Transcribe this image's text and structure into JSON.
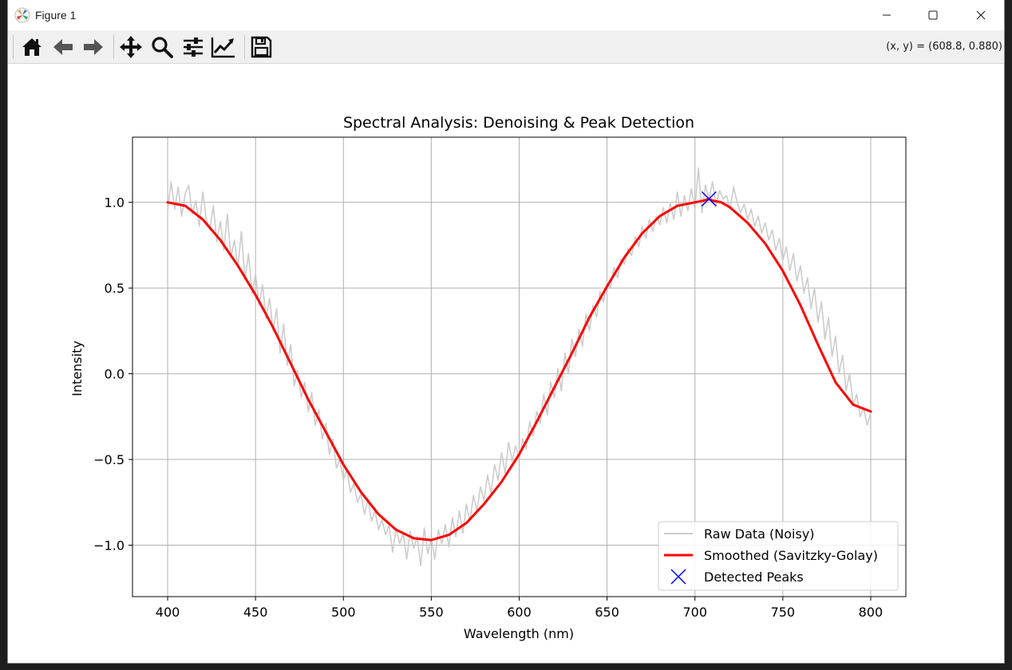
{
  "window": {
    "title": "Figure 1",
    "minimize_icon": "minimize-icon",
    "maximize_icon": "maximize-icon",
    "close_icon": "close-icon"
  },
  "toolbar": {
    "coord_readout": "(x, y) = (608.8, 0.880)",
    "tools": [
      "home-icon",
      "back-arrow-icon",
      "forward-arrow-icon",
      "pan-move-icon",
      "zoom-magnifier-icon",
      "configure-subplots-icon",
      "edit-axis-icon",
      "save-floppy-icon"
    ]
  },
  "chart_data": {
    "type": "line",
    "title": "Spectral Analysis: Denoising & Peak Detection",
    "xlabel": "Wavelength (nm)",
    "ylabel": "Intensity",
    "xlim": [
      380,
      820
    ],
    "ylim": [
      -1.3,
      1.38
    ],
    "xticks": [
      400,
      450,
      500,
      550,
      600,
      650,
      700,
      750,
      800
    ],
    "xtick_labels": [
      "400",
      "450",
      "500",
      "550",
      "600",
      "650",
      "700",
      "750",
      "800"
    ],
    "yticks": [
      -1.0,
      -0.5,
      0.0,
      0.5,
      1.0
    ],
    "ytick_labels": [
      "−1.0",
      "−0.5",
      "0.0",
      "0.5",
      "1.0"
    ],
    "grid": true,
    "legend": "lower-right",
    "colors": {
      "raw": "#cccccc",
      "smoothed": "#ff0000",
      "peaks": "#0000ff",
      "grid": "#b0b0b0"
    },
    "series": [
      {
        "name": "Raw Data (Noisy)",
        "x": [
          400,
          402,
          404,
          406,
          408,
          410,
          412,
          414,
          416,
          418,
          420,
          422,
          424,
          426,
          428,
          430,
          432,
          434,
          436,
          438,
          440,
          442,
          444,
          446,
          448,
          450,
          452,
          454,
          456,
          458,
          460,
          462,
          464,
          466,
          468,
          470,
          472,
          474,
          476,
          478,
          480,
          482,
          484,
          486,
          488,
          490,
          492,
          494,
          496,
          498,
          500,
          502,
          504,
          506,
          508,
          510,
          512,
          514,
          516,
          518,
          520,
          522,
          524,
          526,
          528,
          530,
          532,
          534,
          536,
          538,
          540,
          542,
          544,
          546,
          548,
          550,
          552,
          554,
          556,
          558,
          560,
          562,
          564,
          566,
          568,
          570,
          572,
          574,
          576,
          578,
          580,
          582,
          584,
          586,
          588,
          590,
          592,
          594,
          596,
          598,
          600,
          602,
          604,
          606,
          608,
          610,
          612,
          614,
          616,
          618,
          620,
          622,
          624,
          626,
          628,
          630,
          632,
          634,
          636,
          638,
          640,
          642,
          644,
          646,
          648,
          650,
          652,
          654,
          656,
          658,
          660,
          662,
          664,
          666,
          668,
          670,
          672,
          674,
          676,
          678,
          680,
          682,
          684,
          686,
          688,
          690,
          692,
          694,
          696,
          698,
          700,
          702,
          704,
          706,
          708,
          710,
          712,
          714,
          716,
          718,
          720,
          722,
          724,
          726,
          728,
          730,
          732,
          734,
          736,
          738,
          740,
          742,
          744,
          746,
          748,
          750,
          752,
          754,
          756,
          758,
          760,
          762,
          764,
          766,
          768,
          770,
          772,
          774,
          776,
          778,
          780,
          782,
          784,
          786,
          788,
          790,
          792,
          794,
          796,
          798,
          800
        ],
        "y": [
          0.95,
          1.12,
          0.96,
          1.09,
          0.92,
          1.05,
          1.1,
          0.93,
          1.01,
          0.86,
          1.06,
          0.9,
          0.84,
          0.98,
          0.77,
          0.89,
          0.72,
          0.93,
          0.68,
          0.78,
          0.62,
          0.83,
          0.55,
          0.7,
          0.47,
          0.58,
          0.4,
          0.52,
          0.32,
          0.44,
          0.25,
          0.38,
          0.12,
          0.29,
          0.05,
          0.17,
          -0.07,
          0.02,
          -0.14,
          -0.05,
          -0.22,
          -0.11,
          -0.3,
          -0.21,
          -0.38,
          -0.29,
          -0.47,
          -0.38,
          -0.55,
          -0.5,
          -0.62,
          -0.56,
          -0.69,
          -0.64,
          -0.75,
          -0.7,
          -0.82,
          -0.73,
          -0.86,
          -0.8,
          -0.91,
          -0.85,
          -0.94,
          -0.88,
          -1.04,
          -0.9,
          -0.99,
          -0.93,
          -1.08,
          -0.92,
          -1.02,
          -0.95,
          -1.12,
          -0.9,
          -1.05,
          -0.96,
          -1.08,
          -0.91,
          -0.99,
          -0.88,
          -1.01,
          -0.84,
          -0.95,
          -0.8,
          -0.93,
          -0.76,
          -0.86,
          -0.71,
          -0.8,
          -0.66,
          -0.74,
          -0.59,
          -0.7,
          -0.53,
          -0.62,
          -0.46,
          -0.58,
          -0.4,
          -0.51,
          -0.42,
          -0.5,
          -0.38,
          -0.44,
          -0.28,
          -0.36,
          -0.22,
          -0.29,
          -0.12,
          -0.24,
          -0.05,
          -0.14,
          0.03,
          -0.1,
          0.12,
          0.0,
          0.2,
          0.1,
          0.26,
          0.16,
          0.35,
          0.25,
          0.4,
          0.33,
          0.48,
          0.42,
          0.53,
          0.5,
          0.62,
          0.56,
          0.67,
          0.64,
          0.73,
          0.69,
          0.8,
          0.74,
          0.86,
          0.79,
          0.9,
          0.83,
          0.92,
          0.87,
          0.97,
          0.88,
          1.0,
          0.9,
          1.06,
          0.92,
          1.04,
          0.95,
          1.08,
          0.96,
          1.2,
          0.94,
          1.1,
          1.02,
          1.12,
          0.98,
          1.07,
          1.02,
          1.04,
          0.96,
          1.09,
          1.0,
          0.94,
          0.99,
          0.9,
          0.96,
          0.86,
          0.92,
          0.82,
          0.88,
          0.78,
          0.84,
          0.72,
          0.79,
          0.66,
          0.74,
          0.6,
          0.7,
          0.54,
          0.63,
          0.47,
          0.56,
          0.38,
          0.5,
          0.3,
          0.42,
          0.2,
          0.33,
          0.1,
          0.22,
          0.0,
          0.11,
          -0.1,
          0.0,
          -0.18,
          -0.12,
          -0.25,
          -0.2,
          -0.3,
          -0.23
        ],
        "color": "#cccccc"
      },
      {
        "name": "Smoothed (Savitzky-Golay)",
        "x": [
          400,
          410,
          420,
          430,
          440,
          450,
          460,
          470,
          480,
          490,
          500,
          510,
          520,
          530,
          540,
          550,
          560,
          570,
          580,
          590,
          600,
          610,
          620,
          630,
          640,
          650,
          660,
          670,
          680,
          690,
          700,
          705,
          708,
          710,
          715,
          720,
          730,
          740,
          750,
          760,
          770,
          780,
          790,
          800
        ],
        "y": [
          1.0,
          0.98,
          0.9,
          0.78,
          0.63,
          0.46,
          0.27,
          0.06,
          -0.15,
          -0.34,
          -0.53,
          -0.69,
          -0.82,
          -0.91,
          -0.96,
          -0.97,
          -0.94,
          -0.87,
          -0.76,
          -0.63,
          -0.47,
          -0.28,
          -0.08,
          0.12,
          0.33,
          0.51,
          0.68,
          0.82,
          0.92,
          0.98,
          1.0,
          1.01,
          1.02,
          1.01,
          1.0,
          0.97,
          0.88,
          0.76,
          0.6,
          0.4,
          0.17,
          -0.05,
          -0.18,
          -0.22
        ],
        "color": "#ff0000"
      },
      {
        "name": "Detected Peaks",
        "x": [
          708
        ],
        "y": [
          1.02
        ],
        "color": "#0000ff"
      }
    ]
  }
}
